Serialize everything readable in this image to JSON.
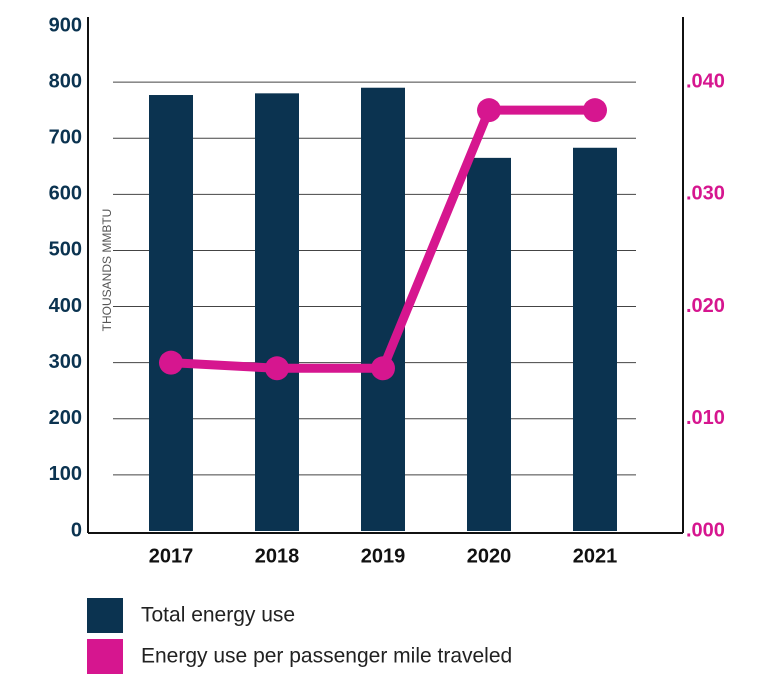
{
  "chart_data": {
    "type": "bar",
    "categories": [
      "2017",
      "2018",
      "2019",
      "2020",
      "2021"
    ],
    "ylabel": "THOUSANDS MMBTU",
    "ylim": [
      0,
      900
    ],
    "yticks": [
      0,
      100,
      200,
      300,
      400,
      500,
      600,
      700,
      800,
      900
    ],
    "y2lim": [
      0,
      0.045
    ],
    "y2ticks": [
      {
        "value": 0,
        "label": ".000"
      },
      {
        "value": 0.01,
        "label": ".010"
      },
      {
        "value": 0.02,
        "label": ".020"
      },
      {
        "value": 0.03,
        "label": ".030"
      },
      {
        "value": 0.04,
        "label": ".040"
      }
    ],
    "grid": true,
    "legend": "bottom",
    "series": [
      {
        "name": "Total energy use",
        "color": "#0b3350",
        "type": "bar",
        "values": [
          777,
          780,
          790,
          665,
          683
        ]
      },
      {
        "name": "Energy use per passenger mile traveled",
        "color": "#d6168f",
        "type": "line",
        "axis": "y2",
        "values": [
          0.015,
          0.0145,
          0.0145,
          0.0375,
          0.0375
        ]
      }
    ]
  }
}
